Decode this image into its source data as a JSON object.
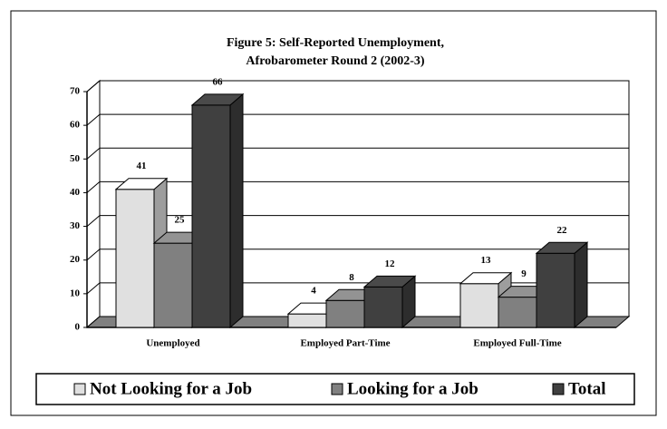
{
  "chart_data": {
    "type": "bar3d",
    "title": "Figure 5:  Self-Reported Unemployment,",
    "subtitle": "Afrobarometer Round 2 (2002-3)",
    "categories": [
      "Unemployed",
      "Employed Part-Time",
      "Employed Full-Time"
    ],
    "series": [
      {
        "name": "Not Looking for a Job",
        "color": "#e0e0e0",
        "values": [
          41,
          4,
          13
        ]
      },
      {
        "name": "Looking for a Job",
        "color": "#808080",
        "values": [
          25,
          8,
          9
        ]
      },
      {
        "name": "Total",
        "color": "#404040",
        "values": [
          66,
          12,
          22
        ]
      }
    ],
    "ylim": [
      0,
      70
    ],
    "yticks": [
      0,
      10,
      20,
      30,
      40,
      50,
      60,
      70
    ],
    "grid": true,
    "legend": "bottom"
  }
}
